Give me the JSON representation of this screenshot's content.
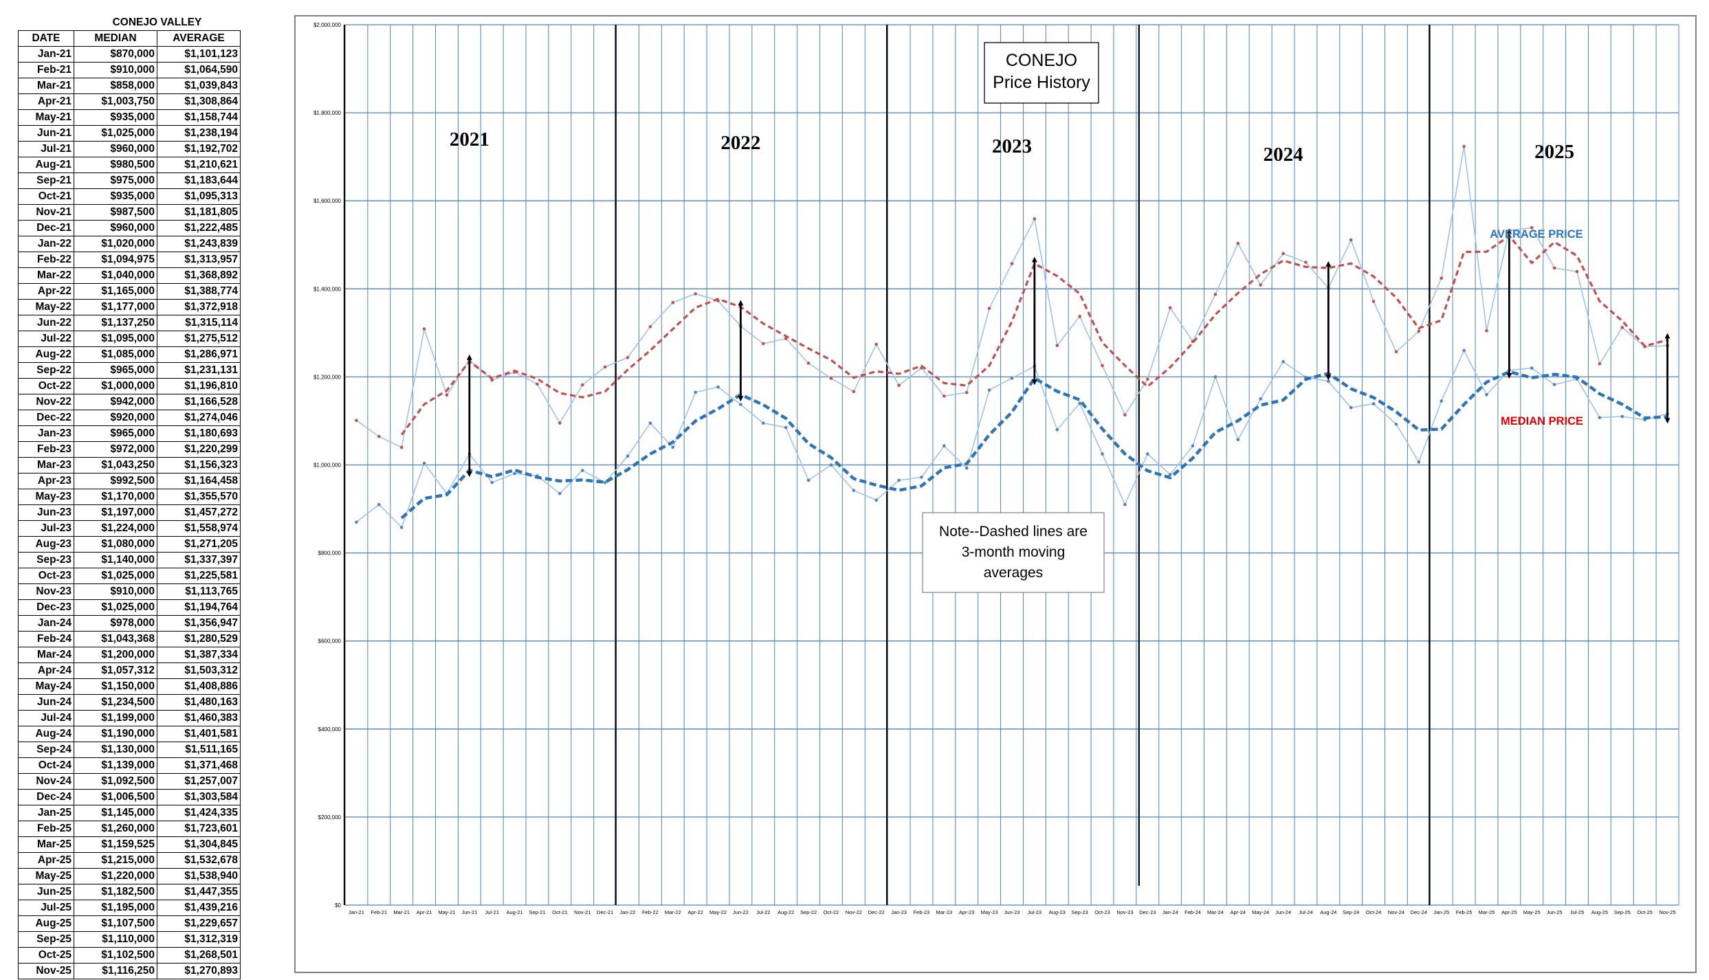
{
  "table": {
    "title": "CONEJO VALLEY",
    "headers": [
      "DATE",
      "MEDIAN",
      "AVERAGE"
    ],
    "rows": [
      [
        "Jan-21",
        "$870,000",
        "$1,101,123"
      ],
      [
        "Feb-21",
        "$910,000",
        "$1,064,590"
      ],
      [
        "Mar-21",
        "$858,000",
        "$1,039,843"
      ],
      [
        "Apr-21",
        "$1,003,750",
        "$1,308,864"
      ],
      [
        "May-21",
        "$935,000",
        "$1,158,744"
      ],
      [
        "Jun-21",
        "$1,025,000",
        "$1,238,194"
      ],
      [
        "Jul-21",
        "$960,000",
        "$1,192,702"
      ],
      [
        "Aug-21",
        "$980,500",
        "$1,210,621"
      ],
      [
        "Sep-21",
        "$975,000",
        "$1,183,644"
      ],
      [
        "Oct-21",
        "$935,000",
        "$1,095,313"
      ],
      [
        "Nov-21",
        "$987,500",
        "$1,181,805"
      ],
      [
        "Dec-21",
        "$960,000",
        "$1,222,485"
      ],
      [
        "Jan-22",
        "$1,020,000",
        "$1,243,839"
      ],
      [
        "Feb-22",
        "$1,094,975",
        "$1,313,957"
      ],
      [
        "Mar-22",
        "$1,040,000",
        "$1,368,892"
      ],
      [
        "Apr-22",
        "$1,165,000",
        "$1,388,774"
      ],
      [
        "May-22",
        "$1,177,000",
        "$1,372,918"
      ],
      [
        "Jun-22",
        "$1,137,250",
        "$1,315,114"
      ],
      [
        "Jul-22",
        "$1,095,000",
        "$1,275,512"
      ],
      [
        "Aug-22",
        "$1,085,000",
        "$1,286,971"
      ],
      [
        "Sep-22",
        "$965,000",
        "$1,231,131"
      ],
      [
        "Oct-22",
        "$1,000,000",
        "$1,196,810"
      ],
      [
        "Nov-22",
        "$942,000",
        "$1,166,528"
      ],
      [
        "Dec-22",
        "$920,000",
        "$1,274,046"
      ],
      [
        "Jan-23",
        "$965,000",
        "$1,180,693"
      ],
      [
        "Feb-23",
        "$972,000",
        "$1,220,299"
      ],
      [
        "Mar-23",
        "$1,043,250",
        "$1,156,323"
      ],
      [
        "Apr-23",
        "$992,500",
        "$1,164,458"
      ],
      [
        "May-23",
        "$1,170,000",
        "$1,355,570"
      ],
      [
        "Jun-23",
        "$1,197,000",
        "$1,457,272"
      ],
      [
        "Jul-23",
        "$1,224,000",
        "$1,558,974"
      ],
      [
        "Aug-23",
        "$1,080,000",
        "$1,271,205"
      ],
      [
        "Sep-23",
        "$1,140,000",
        "$1,337,397"
      ],
      [
        "Oct-23",
        "$1,025,000",
        "$1,225,581"
      ],
      [
        "Nov-23",
        "$910,000",
        "$1,113,765"
      ],
      [
        "Dec-23",
        "$1,025,000",
        "$1,194,764"
      ],
      [
        "Jan-24",
        "$978,000",
        "$1,356,947"
      ],
      [
        "Feb-24",
        "$1,043,368",
        "$1,280,529"
      ],
      [
        "Mar-24",
        "$1,200,000",
        "$1,387,334"
      ],
      [
        "Apr-24",
        "$1,057,312",
        "$1,503,312"
      ],
      [
        "May-24",
        "$1,150,000",
        "$1,408,886"
      ],
      [
        "Jun-24",
        "$1,234,500",
        "$1,480,163"
      ],
      [
        "Jul-24",
        "$1,199,000",
        "$1,460,383"
      ],
      [
        "Aug-24",
        "$1,190,000",
        "$1,401,581"
      ],
      [
        "Sep-24",
        "$1,130,000",
        "$1,511,165"
      ],
      [
        "Oct-24",
        "$1,139,000",
        "$1,371,468"
      ],
      [
        "Nov-24",
        "$1,092,500",
        "$1,257,007"
      ],
      [
        "Dec-24",
        "$1,006,500",
        "$1,303,584"
      ],
      [
        "Jan-25",
        "$1,145,000",
        "$1,424,335"
      ],
      [
        "Feb-25",
        "$1,260,000",
        "$1,723,601"
      ],
      [
        "Mar-25",
        "$1,159,525",
        "$1,304,845"
      ],
      [
        "Apr-25",
        "$1,215,000",
        "$1,532,678"
      ],
      [
        "May-25",
        "$1,220,000",
        "$1,538,940"
      ],
      [
        "Jun-25",
        "$1,182,500",
        "$1,447,355"
      ],
      [
        "Jul-25",
        "$1,195,000",
        "$1,439,216"
      ],
      [
        "Aug-25",
        "$1,107,500",
        "$1,229,657"
      ],
      [
        "Sep-25",
        "$1,110,000",
        "$1,312,319"
      ],
      [
        "Oct-25",
        "$1,102,500",
        "$1,268,501"
      ],
      [
        "Nov-25",
        "$1,116,250",
        "$1,270,893"
      ]
    ]
  },
  "chart_data": {
    "type": "line",
    "title": "",
    "xlabel": "",
    "ylabel": "",
    "ylim": [
      0,
      2000000
    ],
    "yticks": [
      "$0",
      "$200,000",
      "$400,000",
      "$600,000",
      "$800,000",
      "$1,000,000",
      "$1,200,000",
      "$1,400,000",
      "$1,600,000",
      "$1,800,000",
      "$2,000,000"
    ],
    "grid": true,
    "categories": [
      "Jan-21",
      "Feb-21",
      "Mar-21",
      "Apr-21",
      "May-21",
      "Jun-21",
      "Jul-21",
      "Aug-21",
      "Sep-21",
      "Oct-21",
      "Nov-21",
      "Dec-21",
      "Jan-22",
      "Feb-22",
      "Mar-22",
      "Apr-22",
      "May-22",
      "Jun-22",
      "Jul-22",
      "Aug-22",
      "Sep-22",
      "Oct-22",
      "Nov-22",
      "Dec-22",
      "Jan-23",
      "Feb-23",
      "Mar-23",
      "Apr-23",
      "May-23",
      "Jun-23",
      "Jul-23",
      "Aug-23",
      "Sep-23",
      "Oct-23",
      "Nov-23",
      "Dec-23",
      "Jan-24",
      "Feb-24",
      "Mar-24",
      "Apr-24",
      "May-24",
      "Jun-24",
      "Jul-24",
      "Aug-24",
      "Sep-24",
      "Oct-24",
      "Nov-24",
      "Dec-24",
      "Jan-25",
      "Feb-25",
      "Mar-25",
      "Apr-25",
      "May-25",
      "Jun-25",
      "Jul-25",
      "Aug-25",
      "Sep-25",
      "Oct-25",
      "Nov-25"
    ],
    "series": [
      {
        "name": "MEDIAN PRICE",
        "color": "#9dc3e6",
        "ma_color": "#2e75b6",
        "values": [
          870000,
          910000,
          858000,
          1003750,
          935000,
          1025000,
          960000,
          980500,
          975000,
          935000,
          987500,
          960000,
          1020000,
          1094975,
          1040000,
          1165000,
          1177000,
          1137250,
          1095000,
          1085000,
          965000,
          1000000,
          942000,
          920000,
          965000,
          972000,
          1043250,
          992500,
          1170000,
          1197000,
          1224000,
          1080000,
          1140000,
          1025000,
          910000,
          1025000,
          978000,
          1043368,
          1200000,
          1057312,
          1150000,
          1234500,
          1199000,
          1190000,
          1130000,
          1139000,
          1092500,
          1006500,
          1145000,
          1260000,
          1159525,
          1215000,
          1220000,
          1182500,
          1195000,
          1107500,
          1110000,
          1102500,
          1116250
        ]
      },
      {
        "name": "AVERAGE PRICE",
        "color": "#9dc3e6",
        "ma_color": "#c0504d",
        "values": [
          1101123,
          1064590,
          1039843,
          1308864,
          1158744,
          1238194,
          1192702,
          1210621,
          1183644,
          1095313,
          1181805,
          1222485,
          1243839,
          1313957,
          1368892,
          1388774,
          1372918,
          1315114,
          1275512,
          1286971,
          1231131,
          1196810,
          1166528,
          1274046,
          1180693,
          1220299,
          1156323,
          1164458,
          1355570,
          1457272,
          1558974,
          1271205,
          1337397,
          1225581,
          1113765,
          1194764,
          1356947,
          1280529,
          1387334,
          1503312,
          1408886,
          1480163,
          1460383,
          1401581,
          1511165,
          1371468,
          1257007,
          1303584,
          1424335,
          1723601,
          1304845,
          1532678,
          1538940,
          1447355,
          1439216,
          1229657,
          1312319,
          1268501,
          1270893
        ]
      }
    ],
    "moving_average": 3,
    "year_labels": [
      "2021",
      "2022",
      "2023",
      "2024",
      "2025"
    ],
    "title_box": [
      "CONEJO",
      "Price History"
    ],
    "note_box": [
      "Note--Dashed lines are",
      "3-month moving",
      "averages"
    ],
    "series_labels": {
      "average": "AVERAGE PRICE",
      "median": "MEDIAN PRICE"
    },
    "label_colors": {
      "average": "#2e75b6",
      "median": "#e00000"
    }
  }
}
